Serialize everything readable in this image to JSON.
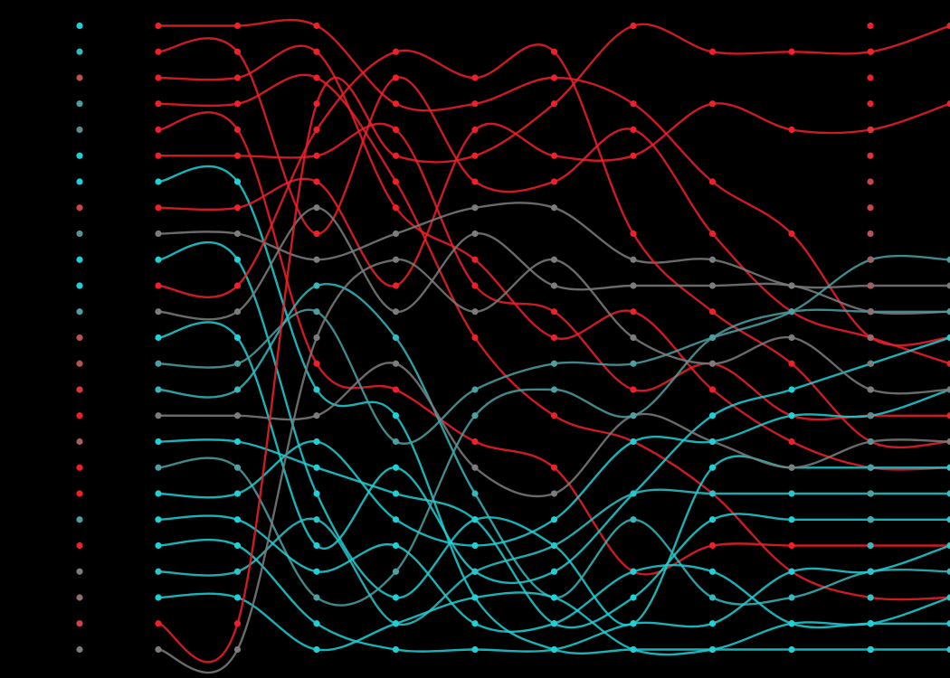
{
  "chart_data": {
    "type": "line",
    "title": "",
    "xlabel": "",
    "ylabel": "",
    "grid": false,
    "legend": "none",
    "x": [
      1,
      2,
      3,
      4,
      5,
      6,
      7,
      8,
      9,
      10,
      11
    ],
    "ylim": [
      1,
      25
    ],
    "colors": {
      "background": "#000000",
      "cyan": "#1fd1d6",
      "red": "#f0202a",
      "palette": [
        "#1fd1d6",
        "#2bc4c9",
        "#36b8bc",
        "#43abaf",
        "#4e9fa2",
        "#5a9396",
        "#668a8c",
        "#7b7c7d",
        "#8f6e70",
        "#a45f62",
        "#b85256",
        "#cc4449",
        "#e0343a",
        "#f0202a"
      ]
    },
    "series": [
      {
        "values": [
          1,
          1,
          1,
          4,
          4,
          3,
          4,
          7,
          9,
          13,
          13
        ],
        "color": "#f0202a"
      },
      {
        "values": [
          2,
          2,
          9,
          3,
          7,
          7,
          5,
          9,
          12,
          13,
          14
        ],
        "color": "#f0202a"
      },
      {
        "values": [
          3,
          3,
          2,
          8,
          10,
          13,
          12,
          15,
          17,
          18,
          18
        ],
        "color": "#f0202a"
      },
      {
        "values": [
          4,
          4,
          3,
          7,
          13,
          16,
          17,
          19,
          22,
          23,
          23
        ],
        "color": "#f0202a"
      },
      {
        "values": [
          5,
          5,
          14,
          15,
          17,
          18,
          22,
          21,
          21,
          21,
          21
        ],
        "color": "#f0202a"
      },
      {
        "values": [
          6,
          6,
          6,
          5,
          11,
          12,
          15,
          14,
          16,
          16,
          16
        ],
        "color": "#f0202a"
      },
      {
        "values": [
          7,
          7,
          15,
          16,
          23,
          25,
          25,
          25,
          25,
          25,
          25
        ],
        "color": "#1fd1d6"
      },
      {
        "values": [
          8,
          8,
          7,
          11,
          5,
          6,
          6,
          4,
          5,
          5,
          4
        ],
        "color": "#f0202a"
      },
      {
        "values": [
          9,
          9,
          10,
          9,
          8,
          8,
          10,
          10,
          11,
          11,
          11
        ],
        "color": "#7b7c7d"
      },
      {
        "values": [
          10,
          10,
          19,
          23,
          20,
          21,
          24,
          18,
          18,
          18,
          18
        ],
        "color": "#1fd1d6"
      },
      {
        "values": [
          11,
          11,
          5,
          2,
          3,
          2,
          9,
          12,
          14,
          17,
          17
        ],
        "color": "#f0202a"
      },
      {
        "values": [
          12,
          12,
          8,
          12,
          9,
          11,
          11,
          11,
          11,
          12,
          12
        ],
        "color": "#7b7c7d"
      },
      {
        "values": [
          13,
          13,
          21,
          18,
          22,
          22,
          19,
          16,
          15,
          14,
          13
        ],
        "color": "#1fd1d6"
      },
      {
        "values": [
          14,
          14,
          12,
          17,
          15,
          14,
          14,
          13,
          12,
          10,
          10
        ],
        "color": "#4e9fa2"
      },
      {
        "values": [
          15,
          15,
          11,
          13,
          19,
          23,
          20,
          23,
          23,
          22,
          22
        ],
        "color": "#36b8bc"
      },
      {
        "values": [
          16,
          16,
          16,
          14,
          18,
          19,
          16,
          17,
          18,
          17,
          17
        ],
        "color": "#7b7c7d"
      },
      {
        "values": [
          17,
          17,
          18,
          19,
          20,
          24,
          23,
          20,
          20,
          20,
          20
        ],
        "color": "#1fd1d6"
      },
      {
        "values": [
          18,
          18,
          23,
          22,
          16,
          15,
          16,
          13,
          12,
          12,
          12
        ],
        "color": "#4e9fa2"
      },
      {
        "values": [
          19,
          19,
          17,
          20,
          21,
          20,
          17,
          17,
          16,
          16,
          15
        ],
        "color": "#1fd1d6"
      },
      {
        "values": [
          20,
          20,
          22,
          21,
          24,
          24,
          22,
          22,
          24,
          24,
          24
        ],
        "color": "#1fd1d6"
      },
      {
        "values": [
          21,
          21,
          24,
          25,
          25,
          25,
          24,
          24,
          22,
          22,
          21
        ],
        "color": "#1fd1d6"
      },
      {
        "values": [
          22,
          22,
          20,
          24,
          22,
          21,
          19,
          19,
          19,
          19,
          19
        ],
        "color": "#2bc4c9"
      },
      {
        "values": [
          23,
          23,
          25,
          24,
          23,
          23,
          25,
          25,
          24,
          24,
          23
        ],
        "color": "#1fd1d6"
      },
      {
        "values": [
          24,
          24,
          4,
          6,
          6,
          4,
          1,
          2,
          2,
          2,
          1
        ],
        "color": "#f0202a"
      },
      {
        "values": [
          25,
          25,
          13,
          10,
          12,
          10,
          13,
          14,
          13,
          15,
          15
        ],
        "color": "#7b7c7d"
      }
    ],
    "left_dot_colors": [
      "#1fd1d6",
      "#36b8bc",
      "#b85256",
      "#4e9fa2",
      "#668a8c",
      "#1fd1d6",
      "#1fd1d6",
      "#cc4449",
      "#5a9396",
      "#1fd1d6",
      "#1fd1d6",
      "#4e9fa2",
      "#b85256",
      "#b85256",
      "#e0343a",
      "#f0202a",
      "#a45f62",
      "#f0202a",
      "#f0202a",
      "#4e9fa2",
      "#f0202a",
      "#7b7c7d",
      "#8f6e70",
      "#cc4449",
      "#7b7c7d"
    ],
    "right_dot_colors": [
      "#f0202a",
      "#f0202a",
      "#f0202a",
      "#f0202a",
      "#e0343a",
      "#e0343a",
      "#cc4449",
      "#cc4449",
      "#b85256",
      "#a45f62",
      "#a45f62",
      "#8f6e70",
      "#8f6e70",
      "#7b7c7d",
      "#7b7c7d",
      "#668a8c",
      "#5a9396",
      "#4e9fa2",
      "#4e9fa2",
      "#43abaf",
      "#36b8bc",
      "#2bc4c9",
      "#2bc4c9",
      "#1fd1d6",
      "#1fd1d6"
    ]
  }
}
